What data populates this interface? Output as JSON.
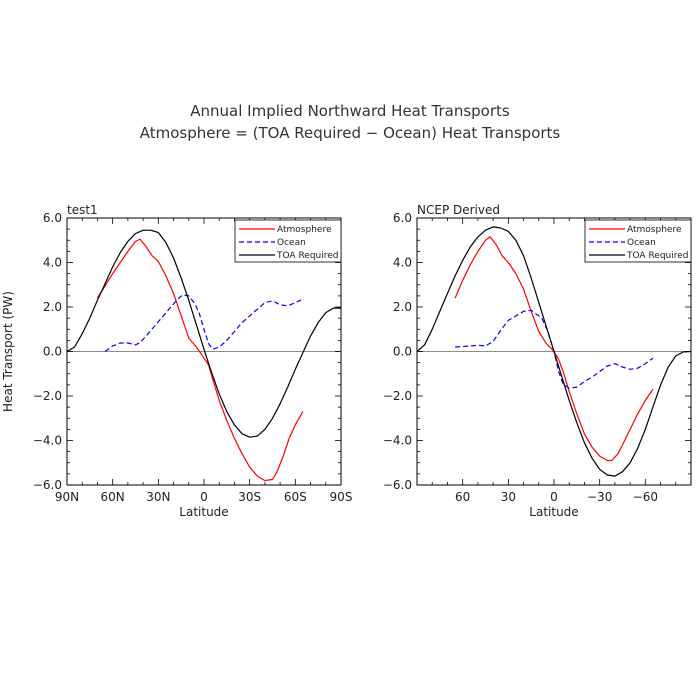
{
  "figure": {
    "title_line1": "Annual Implied Northward Heat Transports",
    "title_line2": "Atmosphere = (TOA Required − Ocean) Heat Transports"
  },
  "chart_data": [
    {
      "type": "line",
      "title": "test1",
      "xlabel": "Latitude",
      "ylabel": "Heat Transport (PW)",
      "xlim": [
        90,
        -90
      ],
      "ylim": [
        -6,
        6
      ],
      "x_ticks": [
        90,
        60,
        30,
        0,
        -30,
        -60,
        -90
      ],
      "x_tick_labels": [
        "90N",
        "60N",
        "30N",
        "0",
        "30S",
        "60S",
        "90S"
      ],
      "y_ticks": [
        -6,
        -4,
        -2,
        0,
        2,
        4,
        6
      ],
      "y_tick_labels": [
        "−6.0",
        "−4.0",
        "−2.0",
        "0.0",
        "2.0",
        "4.0",
        "6.0"
      ],
      "zero_line": true,
      "legend_position": "top-right",
      "series": [
        {
          "name": "Atmosphere",
          "color": "#ff0000",
          "dash": "solid",
          "x": [
            70,
            65,
            60,
            55,
            50,
            45,
            42,
            38,
            34,
            30,
            25,
            20,
            15,
            10,
            5,
            2,
            0,
            -3,
            -6,
            -10,
            -15,
            -20,
            -25,
            -30,
            -35,
            -40,
            -45,
            -48,
            -52,
            -56,
            -60,
            -65
          ],
          "y": [
            2.4,
            2.95,
            3.5,
            4.0,
            4.5,
            4.95,
            5.05,
            4.7,
            4.3,
            4.05,
            3.4,
            2.6,
            1.6,
            0.6,
            0.2,
            -0.1,
            -0.3,
            -0.6,
            -1.3,
            -2.2,
            -3.1,
            -3.9,
            -4.6,
            -5.2,
            -5.6,
            -5.8,
            -5.75,
            -5.4,
            -4.7,
            -3.9,
            -3.3,
            -2.7
          ]
        },
        {
          "name": "Ocean",
          "color": "#0000ff",
          "dash": "dashed",
          "x": [
            65,
            60,
            55,
            50,
            45,
            42,
            38,
            33,
            28,
            23,
            18,
            14,
            10,
            6,
            3,
            0,
            -3,
            -6,
            -10,
            -15,
            -20,
            -25,
            -30,
            -35,
            -40,
            -45,
            -50,
            -55,
            -60,
            -65
          ],
          "y": [
            0.0,
            0.25,
            0.38,
            0.38,
            0.3,
            0.4,
            0.7,
            1.1,
            1.5,
            1.9,
            2.3,
            2.55,
            2.5,
            2.15,
            1.7,
            1.0,
            0.35,
            0.1,
            0.2,
            0.5,
            0.9,
            1.3,
            1.6,
            1.9,
            2.2,
            2.28,
            2.1,
            2.05,
            2.2,
            2.35
          ]
        },
        {
          "name": "TOA Required",
          "color": "#000000",
          "dash": "solid",
          "x": [
            90,
            85,
            80,
            75,
            70,
            65,
            60,
            55,
            50,
            45,
            40,
            35,
            30,
            25,
            20,
            15,
            10,
            5,
            0,
            -5,
            -10,
            -15,
            -20,
            -25,
            -30,
            -35,
            -40,
            -45,
            -50,
            -55,
            -60,
            -65,
            -70,
            -75,
            -80,
            -85,
            -90
          ],
          "y": [
            0.0,
            0.2,
            0.8,
            1.5,
            2.3,
            3.05,
            3.8,
            4.45,
            4.95,
            5.3,
            5.45,
            5.45,
            5.35,
            4.9,
            4.2,
            3.3,
            2.3,
            1.2,
            0.1,
            -0.95,
            -1.9,
            -2.7,
            -3.3,
            -3.7,
            -3.85,
            -3.8,
            -3.5,
            -3.0,
            -2.35,
            -1.6,
            -0.8,
            -0.05,
            0.7,
            1.3,
            1.75,
            1.95,
            1.95
          ]
        }
      ]
    },
    {
      "type": "line",
      "title": "NCEP Derived",
      "xlabel": "Latitude",
      "ylabel": "",
      "xlim": [
        90,
        -90
      ],
      "ylim": [
        -6,
        6
      ],
      "x_ticks": [
        60,
        30,
        0,
        -30,
        -60
      ],
      "x_tick_labels": [
        "60",
        "30",
        "0",
        "−30",
        "−60"
      ],
      "y_ticks": [
        -6,
        -4,
        -2,
        0,
        2,
        4,
        6
      ],
      "y_tick_labels": [
        "−6.0",
        "−4.0",
        "−2.0",
        "0.0",
        "2.0",
        "4.0",
        "6.0"
      ],
      "zero_line": true,
      "legend_position": "top-right",
      "series": [
        {
          "name": "Atmosphere",
          "color": "#ff0000",
          "dash": "solid",
          "x": [
            65,
            60,
            55,
            50,
            45,
            42,
            38,
            34,
            30,
            25,
            20,
            15,
            10,
            5,
            2,
            0,
            -3,
            -6,
            -10,
            -15,
            -20,
            -25,
            -30,
            -35,
            -38,
            -42,
            -45,
            -50,
            -55,
            -60,
            -65
          ],
          "y": [
            2.4,
            3.2,
            3.9,
            4.5,
            5.0,
            5.15,
            4.8,
            4.3,
            4.0,
            3.5,
            2.8,
            1.8,
            0.9,
            0.35,
            0.15,
            0.0,
            -0.35,
            -0.9,
            -1.8,
            -2.8,
            -3.7,
            -4.3,
            -4.7,
            -4.9,
            -4.9,
            -4.6,
            -4.2,
            -3.5,
            -2.8,
            -2.2,
            -1.7
          ]
        },
        {
          "name": "Ocean",
          "color": "#0000ff",
          "dash": "dashed",
          "x": [
            65,
            60,
            55,
            50,
            45,
            40,
            35,
            30,
            25,
            20,
            15,
            12,
            8,
            4,
            0,
            -3,
            -6,
            -10,
            -15,
            -20,
            -25,
            -30,
            -35,
            -40,
            -45,
            -50,
            -55,
            -60,
            -65
          ],
          "y": [
            0.2,
            0.22,
            0.25,
            0.28,
            0.25,
            0.45,
            0.95,
            1.4,
            1.6,
            1.8,
            1.85,
            1.7,
            1.5,
            0.9,
            0.0,
            -0.9,
            -1.45,
            -1.65,
            -1.6,
            -1.35,
            -1.15,
            -0.9,
            -0.65,
            -0.55,
            -0.7,
            -0.8,
            -0.75,
            -0.55,
            -0.3
          ]
        },
        {
          "name": "TOA Required",
          "color": "#000000",
          "dash": "solid",
          "x": [
            90,
            85,
            80,
            75,
            70,
            65,
            60,
            55,
            50,
            45,
            40,
            35,
            30,
            25,
            20,
            15,
            10,
            5,
            0,
            -5,
            -10,
            -15,
            -20,
            -25,
            -30,
            -35,
            -40,
            -45,
            -50,
            -55,
            -60,
            -65,
            -70,
            -75,
            -80,
            -85,
            -90
          ],
          "y": [
            0.0,
            0.3,
            1.0,
            1.8,
            2.6,
            3.4,
            4.1,
            4.7,
            5.15,
            5.45,
            5.6,
            5.55,
            5.4,
            5.0,
            4.3,
            3.3,
            2.2,
            1.1,
            0.0,
            -1.1,
            -2.2,
            -3.2,
            -4.1,
            -4.8,
            -5.3,
            -5.55,
            -5.6,
            -5.4,
            -5.0,
            -4.35,
            -3.5,
            -2.5,
            -1.5,
            -0.7,
            -0.2,
            -0.02,
            0.0
          ]
        }
      ]
    }
  ]
}
